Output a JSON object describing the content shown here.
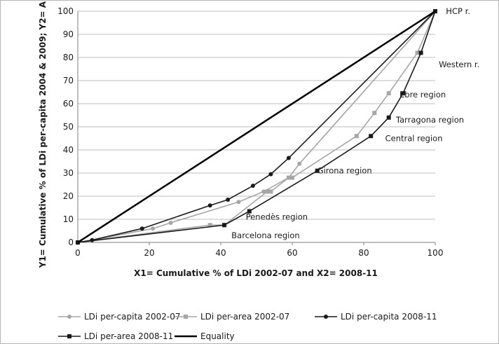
{
  "chart_data": {
    "type": "line",
    "xlabel": "X1= Cumulative % of LDi 2002-07 and X2= 2008-11",
    "ylabel": "Y1= Cumulative % of LDi per-capita 2004 & 2009; Y2= Area",
    "xlim": [
      0,
      100
    ],
    "ylim": [
      0,
      100
    ],
    "xticks": [
      "0",
      "20",
      "40",
      "60",
      "80",
      "100"
    ],
    "yticks": [
      "0",
      "10",
      "20",
      "30",
      "40",
      "50",
      "60",
      "70",
      "80",
      "90",
      "100"
    ],
    "grid": "horizontal",
    "legend_position": "bottom",
    "series": [
      {
        "name": "LDi per-capita 2002-07",
        "color": "#a6a6a6",
        "marker": "circle",
        "x": [
          0,
          4,
          21,
          26,
          45,
          52,
          59,
          62,
          100
        ],
        "y": [
          0,
          1,
          6,
          8.5,
          17.5,
          22,
          28,
          34,
          100
        ]
      },
      {
        "name": "LDi per-area 2002-07",
        "color": "#a6a6a6",
        "marker": "square",
        "x": [
          0,
          37,
          41,
          53,
          54,
          59,
          60,
          78,
          83,
          87,
          95,
          100
        ],
        "y": [
          0,
          7.5,
          7.5,
          22,
          22,
          28,
          28,
          46,
          56,
          64.5,
          82,
          100
        ]
      },
      {
        "name": "LDi per-capita 2008-11",
        "color": "#1a1a1a",
        "marker": "circle",
        "x": [
          0,
          4,
          18,
          37,
          42,
          49,
          54,
          59,
          100
        ],
        "y": [
          0,
          1,
          6,
          16,
          18.5,
          24.5,
          29.5,
          36.5,
          100
        ]
      },
      {
        "name": "LDi per-area 2008-11",
        "color": "#1a1a1a",
        "marker": "square",
        "x": [
          0,
          41,
          48,
          67,
          82,
          87,
          91,
          96,
          100
        ],
        "y": [
          0,
          7.5,
          13.5,
          31,
          46,
          54,
          64.5,
          82,
          100
        ]
      },
      {
        "name": "Equality",
        "color": "#000000",
        "marker": "none",
        "x": [
          0,
          100
        ],
        "y": [
          0,
          100
        ]
      }
    ],
    "annotations": [
      {
        "text": "HCP r.",
        "x": 103,
        "y": 100
      },
      {
        "text": "Western r.",
        "x": 101,
        "y": 77
      },
      {
        "text": "Ebre region",
        "x": 90,
        "y": 64
      },
      {
        "text": "Tarragona region",
        "x": 89,
        "y": 53
      },
      {
        "text": "Central region",
        "x": 86,
        "y": 45
      },
      {
        "text": "Girona region",
        "x": 67,
        "y": 31
      },
      {
        "text": "Penedès region",
        "x": 47,
        "y": 11
      },
      {
        "text": "Barcelona region",
        "x": 43,
        "y": 3
      }
    ]
  }
}
